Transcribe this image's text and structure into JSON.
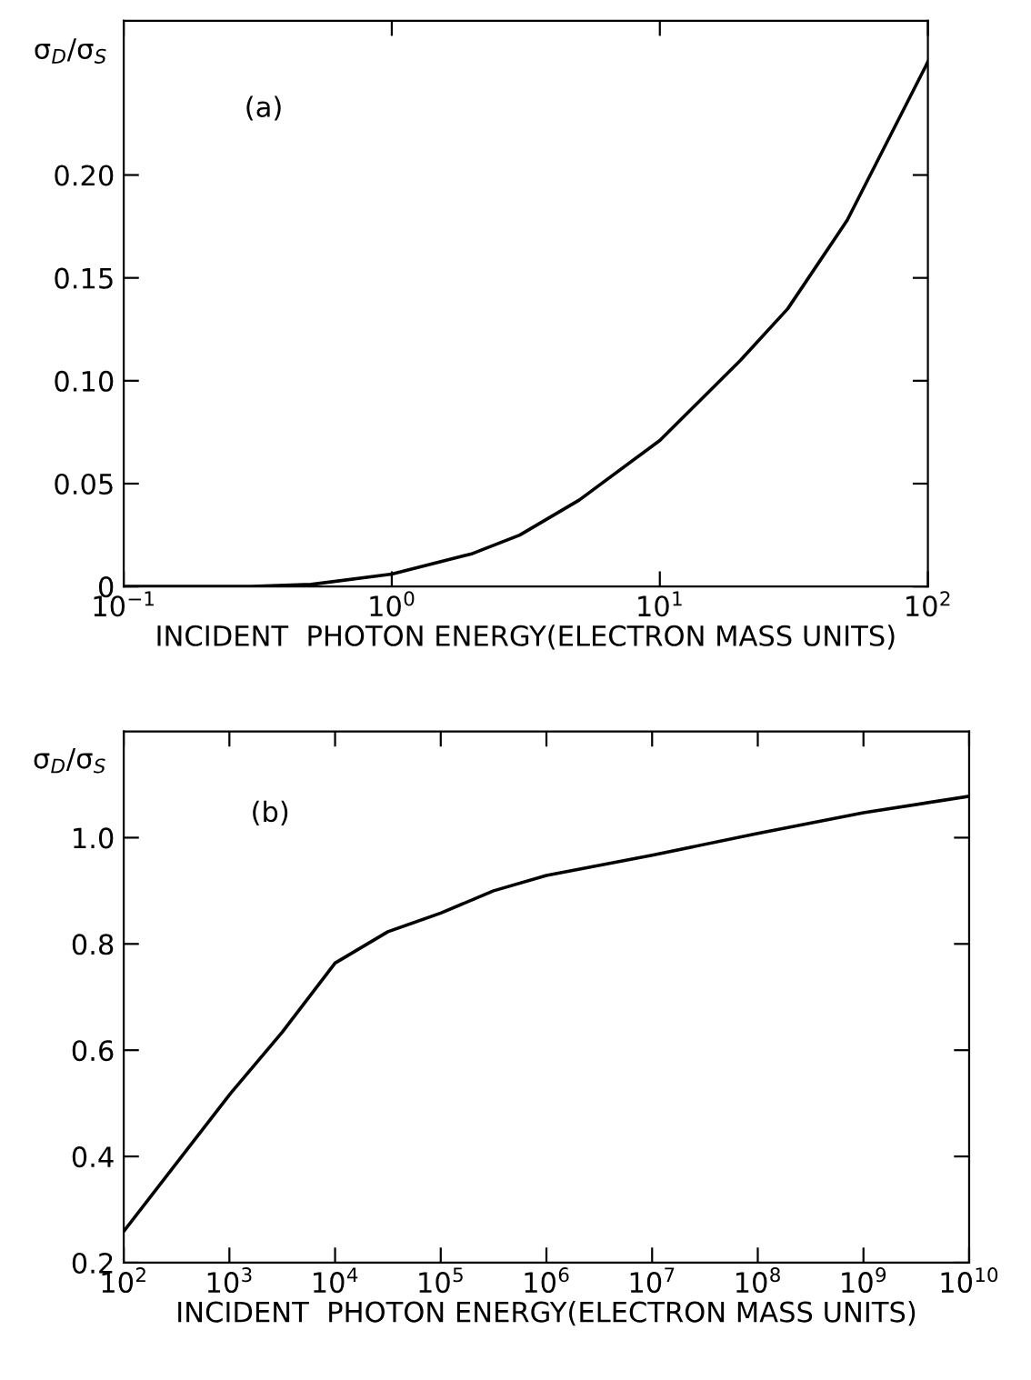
{
  "chart_data": [
    {
      "type": "line",
      "xlabel": "INCIDENT  PHOTON ENERGY(ELECTRON MASS UNITS)",
      "ylabel": "σ$_{D}$/σ$_{S}$",
      "annotations": [
        "(a)"
      ],
      "log": "x",
      "x": [
        0.1,
        0.3,
        0.5,
        1,
        2,
        3,
        5,
        10,
        20,
        30,
        50,
        100
      ],
      "series": [
        {
          "color": "#000000",
          "values": [
            0,
            0,
            0.001,
            0.006,
            0.016,
            0.025,
            0.042,
            0.071,
            0.11,
            0.135,
            0.178,
            0.255
          ]
        }
      ],
      "xlim": [
        0.1,
        100
      ],
      "ylim": [
        0,
        0.275
      ],
      "xticks": [
        {
          "value": 0.1,
          "label": "10$^{−1}$"
        },
        {
          "value": 1,
          "label": "10$^{0}$"
        },
        {
          "value": 10,
          "label": "10$^{1}$"
        },
        {
          "value": 100,
          "label": "10$^{2}$"
        }
      ],
      "yticks": [
        0,
        0.05,
        {
          "value": 0.1,
          "label": "0.10"
        },
        0.15,
        {
          "value": 0.2,
          "label": "0.20"
        }
      ]
    },
    {
      "type": "line",
      "xlabel": "INCIDENT  PHOTON ENERGY(ELECTRON MASS UNITS)",
      "ylabel": "σ$_{D}$/σ$_{S}$",
      "annotations": [
        "(b)"
      ],
      "log": "x",
      "x": [
        100.0,
        1000.0,
        3162,
        10000.0,
        31623,
        100000.0,
        316228,
        1000000.0,
        10000000.0,
        100000000.0,
        1000000000.0,
        10000000000.0
      ],
      "series": [
        {
          "color": "#000000",
          "values": [
            0.259,
            0.516,
            0.634,
            0.764,
            0.823,
            0.858,
            0.9,
            0.929,
            0.967,
            1.008,
            1.047,
            1.078
          ]
        }
      ],
      "xlim": [
        100.0,
        10000000000.0
      ],
      "ylim": [
        0.2,
        1.2
      ],
      "xticks": [
        {
          "value": 100.0,
          "label": "10$^{2}$"
        },
        {
          "value": 1000.0,
          "label": "10$^{3}$"
        },
        {
          "value": 10000.0,
          "label": "10$^{4}$"
        },
        {
          "value": 100000.0,
          "label": "10$^{5}$"
        },
        {
          "value": 1000000.0,
          "label": "10$^{6}$"
        },
        {
          "value": 10000000.0,
          "label": "10$^{7}$"
        },
        {
          "value": 100000000.0,
          "label": "10$^{8}$"
        },
        {
          "value": 1000000000.0,
          "label": "10$^{9}$"
        },
        {
          "value": 10000000000.0,
          "label": "10$^{10}$"
        }
      ],
      "yticks": [
        0.2,
        0.4,
        0.6,
        0.8,
        {
          "value": 1.0,
          "label": "1.0"
        }
      ]
    }
  ]
}
